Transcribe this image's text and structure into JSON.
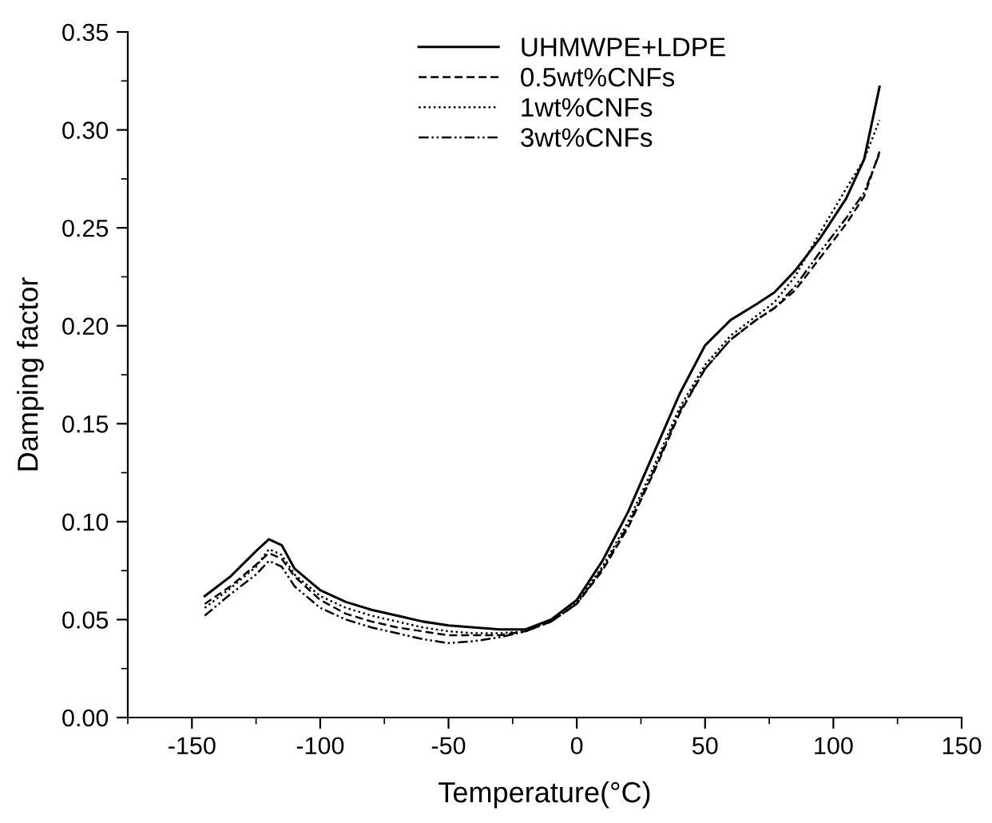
{
  "chart_data": {
    "type": "line",
    "xlabel": "Temperature(°C)",
    "ylabel": "Damping factor",
    "x": [
      -145,
      -135,
      -125,
      -120,
      -115,
      -110,
      -100,
      -90,
      -80,
      -70,
      -60,
      -50,
      -40,
      -30,
      -20,
      -10,
      0,
      10,
      20,
      30,
      40,
      50,
      60,
      70,
      77,
      85,
      95,
      105,
      112,
      118
    ],
    "series": [
      {
        "name": "UHMWPE+LDPE",
        "color": "#000000",
        "line_style": "solid",
        "values": [
          0.062,
          0.072,
          0.085,
          0.091,
          0.088,
          0.076,
          0.065,
          0.059,
          0.055,
          0.052,
          0.049,
          0.047,
          0.046,
          0.045,
          0.045,
          0.05,
          0.06,
          0.08,
          0.105,
          0.135,
          0.165,
          0.19,
          0.203,
          0.211,
          0.217,
          0.228,
          0.245,
          0.265,
          0.285,
          0.322
        ]
      },
      {
        "name": "0.5wt%CNFs",
        "color": "#000000",
        "line_style": "dashed",
        "values": [
          0.058,
          0.067,
          0.078,
          0.084,
          0.081,
          0.072,
          0.06,
          0.053,
          0.049,
          0.046,
          0.044,
          0.042,
          0.042,
          0.042,
          0.044,
          0.049,
          0.058,
          0.075,
          0.097,
          0.125,
          0.155,
          0.178,
          0.193,
          0.203,
          0.209,
          0.218,
          0.235,
          0.252,
          0.266,
          0.289
        ]
      },
      {
        "name": "1wt%CNFs",
        "color": "#000000",
        "line_style": "dotted",
        "values": [
          0.056,
          0.066,
          0.077,
          0.086,
          0.083,
          0.073,
          0.062,
          0.056,
          0.052,
          0.049,
          0.046,
          0.044,
          0.043,
          0.043,
          0.044,
          0.05,
          0.059,
          0.077,
          0.1,
          0.128,
          0.158,
          0.18,
          0.195,
          0.205,
          0.212,
          0.225,
          0.248,
          0.27,
          0.285,
          0.305
        ]
      },
      {
        "name": "3wt%CNFs",
        "color": "#000000",
        "line_style": "dashdot",
        "values": [
          0.052,
          0.063,
          0.073,
          0.08,
          0.077,
          0.067,
          0.056,
          0.05,
          0.046,
          0.043,
          0.04,
          0.038,
          0.039,
          0.041,
          0.044,
          0.049,
          0.058,
          0.076,
          0.098,
          0.126,
          0.156,
          0.178,
          0.193,
          0.203,
          0.209,
          0.22,
          0.238,
          0.255,
          0.268,
          0.288
        ]
      }
    ],
    "xlim": [
      -175,
      150
    ],
    "xticks": [
      -150,
      -100,
      -50,
      0,
      50,
      100,
      150
    ],
    "ylim": [
      0,
      0.35
    ],
    "yticks": [
      {
        "value": 0,
        "label": "0.00"
      },
      {
        "value": 0.05,
        "label": "0.05"
      },
      {
        "value": 0.1,
        "label": "0.10"
      },
      {
        "value": 0.15,
        "label": "0.15"
      },
      {
        "value": 0.2,
        "label": "0.20"
      },
      {
        "value": 0.25,
        "label": "0.25"
      },
      {
        "value": 0.3,
        "label": "0.30"
      },
      {
        "value": 0.35,
        "label": "0.35"
      }
    ],
    "grid": false,
    "legend": "top right"
  }
}
